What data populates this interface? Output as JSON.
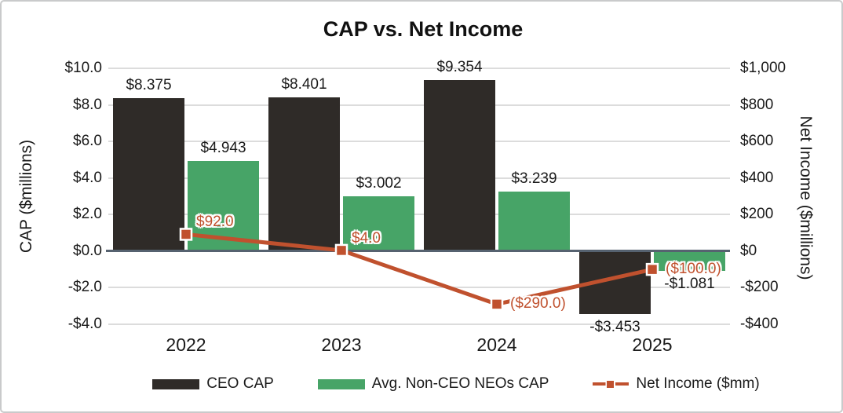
{
  "chart_data": {
    "type": "combo-bar-line",
    "title": "CAP vs. Net Income",
    "categories": [
      "2022",
      "2023",
      "2024",
      "2025"
    ],
    "left_axis": {
      "title": "CAP ($millions)",
      "min": -4.0,
      "max": 10.0,
      "step": 2.0,
      "tick_labels": [
        "$10.0",
        "$8.0",
        "$6.0",
        "$4.0",
        "$2.0",
        "$0.0",
        "-$2.0",
        "-$4.0"
      ]
    },
    "right_axis": {
      "title": "Net Income ($millions)",
      "min": -400,
      "max": 1000,
      "step": 200,
      "tick_labels": [
        "$1,000",
        "$800",
        "$600",
        "$400",
        "$200",
        "$0",
        "-$200",
        "-$400"
      ]
    },
    "grid": true,
    "legend_position": "bottom",
    "series": [
      {
        "name": "CEO CAP",
        "type": "bar",
        "axis": "left",
        "color": "#2f2b28",
        "values": [
          8.375,
          8.401,
          9.354,
          -3.453
        ],
        "data_labels": [
          "$8.375",
          "$8.401",
          "$9.354",
          "-$3.453"
        ]
      },
      {
        "name": "Avg. Non-CEO NEOs CAP",
        "type": "bar",
        "axis": "left",
        "color": "#47a467",
        "values": [
          4.943,
          3.002,
          3.239,
          -1.081
        ],
        "data_labels": [
          "$4.943",
          "$3.002",
          "$3.239",
          "-$1.081"
        ]
      },
      {
        "name": "Net Income ($mm)",
        "type": "line",
        "axis": "right",
        "color": "#c0512e",
        "marker": "square",
        "values": [
          92.0,
          4.0,
          -290.0,
          -100.0
        ],
        "data_labels": [
          "$92.0",
          "$4.0",
          "($290.0)",
          "($100.0)"
        ],
        "label_placement": [
          "above-right",
          "above-right",
          "right",
          "right"
        ]
      }
    ],
    "colors": {
      "grid": "#dcdcdc",
      "zero_line": "#566270",
      "text": "#1a1a1a",
      "background": "#ffffff",
      "border": "#c9cacb",
      "net_income_label": "#c0512e"
    }
  }
}
